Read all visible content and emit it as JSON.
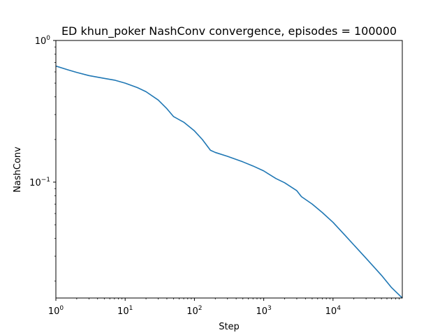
{
  "chart_data": {
    "type": "line",
    "title": "ED khun_poker NashConv convergence, episodes = 100000",
    "xlabel": "Step",
    "ylabel": "NashConv",
    "xscale": "log",
    "yscale": "log",
    "xlim": [
      1,
      100000
    ],
    "ylim": [
      0.0152,
      1
    ],
    "grid": false,
    "line_color": "#1f77b4",
    "x_ticks": [
      {
        "value": 1,
        "base": "10",
        "exp": "0"
      },
      {
        "value": 10,
        "base": "10",
        "exp": "1"
      },
      {
        "value": 100,
        "base": "10",
        "exp": "2"
      },
      {
        "value": 1000,
        "base": "10",
        "exp": "3"
      },
      {
        "value": 10000,
        "base": "10",
        "exp": "4"
      }
    ],
    "y_ticks": [
      {
        "value": 1,
        "base": "10",
        "exp": "0"
      },
      {
        "value": 0.1,
        "base": "10",
        "exp": "−1"
      }
    ],
    "series": [
      {
        "x": [
          1,
          1.5,
          2,
          3,
          5,
          7,
          10,
          15,
          20,
          30,
          40,
          50,
          70,
          100,
          130,
          170,
          200,
          300,
          500,
          700,
          1000,
          1500,
          2000,
          3000,
          3500,
          5000,
          7000,
          10000,
          15000,
          20000,
          30000,
          50000,
          70000,
          100000
        ],
        "y": [
          0.66,
          0.62,
          0.595,
          0.565,
          0.54,
          0.525,
          0.5,
          0.465,
          0.435,
          0.38,
          0.33,
          0.29,
          0.265,
          0.23,
          0.2,
          0.168,
          0.162,
          0.152,
          0.139,
          0.13,
          0.12,
          0.106,
          0.099,
          0.087,
          0.079,
          0.07,
          0.061,
          0.052,
          0.042,
          0.036,
          0.029,
          0.022,
          0.018,
          0.0152
        ]
      }
    ]
  }
}
